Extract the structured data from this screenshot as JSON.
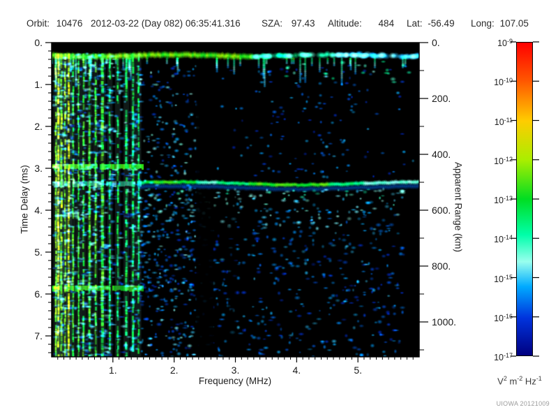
{
  "header": {
    "fields": [
      {
        "label": "Orbit:",
        "value": "10476"
      },
      {
        "label": "",
        "value": "2012-03-22 (Day 082) 06:35:41.316"
      },
      {
        "label": "SZA:",
        "value": "97.43"
      },
      {
        "label": "Altitude:",
        "value": "484"
      },
      {
        "label": "Lat:",
        "value": "-56.49"
      },
      {
        "label": "Long:",
        "value": "107.05"
      }
    ]
  },
  "chart_data": {
    "type": "heatmap",
    "subtype": "radar-sounder-ionogram",
    "xlabel": "Frequency (MHz)",
    "x_range_mhz": [
      0,
      6
    ],
    "x_major_ticks": [
      {
        "value": 1,
        "label": "1."
      },
      {
        "value": 2,
        "label": "2."
      },
      {
        "value": 3,
        "label": "3."
      },
      {
        "value": 4,
        "label": "4."
      },
      {
        "value": 5,
        "label": "5."
      }
    ],
    "x_minor_step_mhz": 0.1,
    "ylabel_left": "Time Delay (ms)",
    "y_range_ms": [
      0,
      7.5
    ],
    "y_major_ticks": [
      {
        "value": 0,
        "label": "0."
      },
      {
        "value": 1,
        "label": "1."
      },
      {
        "value": 2,
        "label": "2."
      },
      {
        "value": 3,
        "label": "3."
      },
      {
        "value": 4,
        "label": "4."
      },
      {
        "value": 5,
        "label": "5."
      },
      {
        "value": 6,
        "label": "6."
      },
      {
        "value": 7,
        "label": "7."
      }
    ],
    "y_minor_step_ms": 0.2,
    "ylabel_right": "Apparent Range (km)",
    "right_range_km": [
      0,
      1125
    ],
    "right_major_ticks": [
      {
        "value": 0,
        "label": "0."
      },
      {
        "value": 200,
        "label": "200."
      },
      {
        "value": 400,
        "label": "400."
      },
      {
        "value": 600,
        "label": "600."
      },
      {
        "value": 800,
        "label": "800."
      },
      {
        "value": 1000,
        "label": "1000."
      }
    ],
    "right_minor_step_km": 100,
    "colorbar": {
      "scale": "log",
      "tick_exponents": [
        "-9",
        "-10",
        "-11",
        "-12",
        "-13",
        "-14",
        "-15",
        "-16",
        "-17"
      ],
      "unit_parts": [
        {
          "base": "V",
          "exp": "2"
        },
        {
          "base": "m",
          "exp": "-2"
        },
        {
          "base": "Hz",
          "exp": "-1"
        }
      ],
      "gradient": [
        {
          "pos": 0.0,
          "color": "#ff0000"
        },
        {
          "pos": 0.12,
          "color": "#ff5500"
        },
        {
          "pos": 0.25,
          "color": "#ffcc00"
        },
        {
          "pos": 0.375,
          "color": "#aaee00"
        },
        {
          "pos": 0.5,
          "color": "#00dd22"
        },
        {
          "pos": 0.615,
          "color": "#00ffaa"
        },
        {
          "pos": 0.7,
          "color": "#99ffee"
        },
        {
          "pos": 0.78,
          "color": "#00aaff"
        },
        {
          "pos": 0.88,
          "color": "#0033dd"
        },
        {
          "pos": 1.0,
          "color": "#000080"
        }
      ]
    },
    "features": {
      "background": "#000000",
      "render_seed": 20121009,
      "receiver_blank_band": {
        "t0_ms": 0.0,
        "t1_ms": 0.2
      },
      "transmit_pulse": {
        "t0_ms": 0.2,
        "t1_ms": 0.42,
        "f0_mhz": 0.0,
        "f1_mhz": 5.95,
        "green_until_mhz": 3.3,
        "cyan_until_mhz": 4.6,
        "drip_count": 46
      },
      "plasma_oscillation_stripes": {
        "f0_mhz": 0.04,
        "f1_mhz": 1.48,
        "t0_ms": 0.26,
        "stripe_freqs_mhz": [
          0.07,
          0.11,
          0.16,
          0.22,
          0.28,
          0.35,
          0.44,
          0.52,
          0.62,
          0.72,
          0.83,
          0.95,
          1.08,
          1.22,
          1.33,
          1.42
        ],
        "bright_freqs_mhz": [
          0.11,
          0.28
        ]
      },
      "horizontal_bands": [
        {
          "t_ms": 2.95,
          "f0_mhz": 0.0,
          "f1_mhz": 1.5,
          "strength": 0.9
        },
        {
          "t_ms": 5.85,
          "f0_mhz": 0.0,
          "f1_mhz": 1.5,
          "strength": 0.75
        },
        {
          "t_ms": 3.36,
          "f0_mhz": 0.0,
          "f1_mhz": 1.45,
          "strength": 0.35
        }
      ],
      "surface_reflection_trace": {
        "t_ms": 3.36,
        "apparent_range_km": 504,
        "f0_mhz": 1.42,
        "f1_mhz": 5.95,
        "bright_segments_mhz": [
          [
            1.55,
            2.35
          ],
          [
            3.2,
            4.5
          ]
        ]
      },
      "attenuation_band": {
        "f0_mhz": 2.36,
        "f1_mhz": 2.64
      },
      "secondary_gap": {
        "f0_mhz": 2.88,
        "f1_mhz": 3.02,
        "t0_ms": 3.55
      },
      "diffuse_scatter": {
        "mid_region": {
          "f0_mhz": 1.35,
          "f1_mhz": 2.4,
          "t0_ms": 0.55,
          "t1_ms": 7.5,
          "count": 380
        },
        "above_trace": {
          "f0_mhz": 2.55,
          "f1_mhz": 5.95,
          "t0_ms": 0.55,
          "t1_ms": 3.25,
          "count": 150
        },
        "below_trace": {
          "f0_mhz": 1.45,
          "f1_mhz": 5.75,
          "t0_ms": 3.5,
          "t1_ms": 7.5,
          "count": 660
        },
        "sub_pulse_right": {
          "f0_mhz": 3.8,
          "f1_mhz": 5.9,
          "t0_ms": 0.45,
          "t1_ms": 0.95,
          "count": 22
        }
      }
    }
  },
  "credit": "UIOWA 20121009"
}
